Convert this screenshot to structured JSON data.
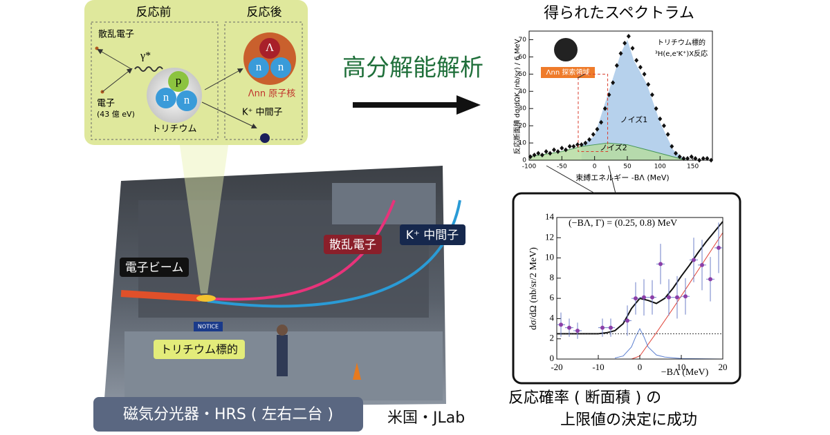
{
  "reaction_diagram": {
    "before_title": "反応前",
    "after_title": "反応後",
    "scattered_electron": "散乱電子",
    "gamma": "γ*",
    "electron": "電子",
    "electron_energy": "(43 億 eV)",
    "proton": "p",
    "neutron_1": "n",
    "neutron_2": "n",
    "tritium": "トリチウム",
    "lambda": "Λ",
    "neutron_3": "n",
    "neutron_4": "n",
    "lambda_nn_nucleus": "Λnn 原子核",
    "kaon": "K⁺ 中間子"
  },
  "analysis_label": "高分解能解析",
  "photo": {
    "electron_beam": "電子ビーム",
    "scattered_electron": "散乱電子",
    "kaon": "K⁺ 中間子",
    "notice": "NOTICE",
    "target": "トリチウム標的",
    "spectrometer_caption": "磁気分光器・HRS ( 左右二台 )",
    "location": "米国・JLab"
  },
  "spectrum": {
    "type": "scatter",
    "title": "得られたスペクトラム",
    "y_label": "反応断面積 dσ/dΩK (nb/sr) / 6 MeV",
    "x_label": "束縛エネルギー -BΛ (MeV)",
    "target_label": "トリチウム標的",
    "reaction_label": "³H(e,e'K⁺)X反応",
    "search_region": "Λnn 探索領域",
    "xlim": [
      -100,
      180
    ],
    "ylim": [
      0,
      75
    ],
    "xticks": [
      -100,
      -50,
      0,
      50,
      100,
      150
    ],
    "yticks": [
      0,
      10,
      20,
      30,
      40,
      50,
      60,
      70
    ],
    "points": {
      "x": [
        -98,
        -92,
        -86,
        -80,
        -74,
        -68,
        -62,
        -56,
        -50,
        -44,
        -38,
        -32,
        -26,
        -20,
        -14,
        -8,
        -2,
        4,
        10,
        16,
        22,
        28,
        34,
        40,
        46,
        52,
        58,
        64,
        70,
        76,
        82,
        88,
        94,
        100,
        106,
        112,
        118,
        124,
        130,
        136,
        142,
        148,
        154,
        160,
        166,
        172,
        178
      ],
      "values": [
        2,
        3,
        4,
        3,
        5,
        4,
        6,
        5,
        7,
        6,
        8,
        8,
        9,
        9,
        10,
        12,
        15,
        18,
        22,
        30,
        38,
        45,
        55,
        62,
        68,
        72,
        65,
        58,
        54,
        50,
        44,
        38,
        30,
        24,
        20,
        15,
        8,
        4,
        2,
        1,
        1,
        2,
        1,
        0,
        1,
        1,
        0
      ]
    },
    "series": [
      {
        "name": "ノイズ1",
        "color": "#a9c9e9",
        "x": [
          -20,
          0,
          20,
          40,
          50,
          60,
          80,
          100,
          120,
          140
        ],
        "values": [
          9,
          14,
          38,
          62,
          70,
          58,
          44,
          22,
          6,
          0
        ]
      },
      {
        "name": "ノイズ2",
        "color": "#b7dca2",
        "x": [
          -100,
          -50,
          -20,
          0,
          20,
          50,
          80,
          110,
          140
        ],
        "values": [
          2,
          5,
          8,
          9,
          10,
          9,
          6,
          3,
          0
        ]
      }
    ]
  },
  "zoom": {
    "type": "scatter",
    "y_label": "dσ/dΩ (nb/sr/2 MeV)",
    "x_label": "−BΛ (MeV)",
    "annotation": "(−BΛ, Γ) = (0.25, 0.8) MeV",
    "xlim": [
      -20,
      20
    ],
    "ylim": [
      0,
      14
    ],
    "xticks": [
      -20,
      -10,
      0,
      10,
      20
    ],
    "yticks": [
      0,
      2,
      4,
      6,
      8,
      10,
      12,
      14
    ],
    "points": {
      "x": [
        -19,
        -17,
        -15,
        -9,
        -7,
        -3,
        -1,
        1,
        3,
        5,
        7,
        9,
        11,
        13,
        15,
        17,
        19
      ],
      "values": [
        3.4,
        3.1,
        2.8,
        3.1,
        3.1,
        3.8,
        6.0,
        6.1,
        6.1,
        9.4,
        6.1,
        6.1,
        6.2,
        9.8,
        9.3,
        7.9,
        11.0
      ],
      "errors": [
        1.2,
        0.9,
        0.8,
        0.9,
        0.9,
        1.5,
        1.6,
        1.8,
        1.7,
        2.0,
        1.8,
        2.1,
        1.8,
        2.2,
        2.5,
        2.2,
        2.5
      ]
    },
    "curves": [
      {
        "color": "#111111",
        "x": [
          -20,
          -18,
          -16,
          -14,
          -12,
          -10,
          -8,
          -6,
          -4,
          -2,
          0,
          2,
          4,
          6,
          8,
          10,
          12,
          14,
          16,
          18,
          20
        ],
        "values": [
          2.5,
          2.5,
          2.5,
          2.5,
          2.5,
          2.5,
          2.6,
          2.8,
          3.5,
          5.0,
          6.0,
          5.8,
          5.5,
          6.0,
          7.0,
          8.2,
          9.3,
          10.5,
          11.6,
          12.6,
          13.6
        ]
      },
      {
        "color": "#e0453a",
        "x": [
          -2,
          0,
          4,
          8,
          12,
          16,
          20
        ],
        "values": [
          0,
          0.3,
          2.6,
          5.0,
          7.5,
          10,
          12.5
        ]
      },
      {
        "color": "#5b7fd0",
        "x": [
          -6,
          -4,
          -2,
          -1,
          0,
          1,
          2,
          4,
          6,
          10,
          20
        ],
        "values": [
          0.1,
          0.3,
          1.2,
          2.2,
          3.0,
          2.2,
          1.2,
          0.4,
          0.2,
          0.05,
          0
        ]
      },
      {
        "color": "#333333",
        "dashed": true,
        "x": [
          -20,
          20
        ],
        "values": [
          2.5,
          2.5
        ]
      }
    ]
  },
  "conclusion": {
    "line1": "反応確率 ( 断面積 ) の",
    "line2": "上限値の決定に成功"
  }
}
